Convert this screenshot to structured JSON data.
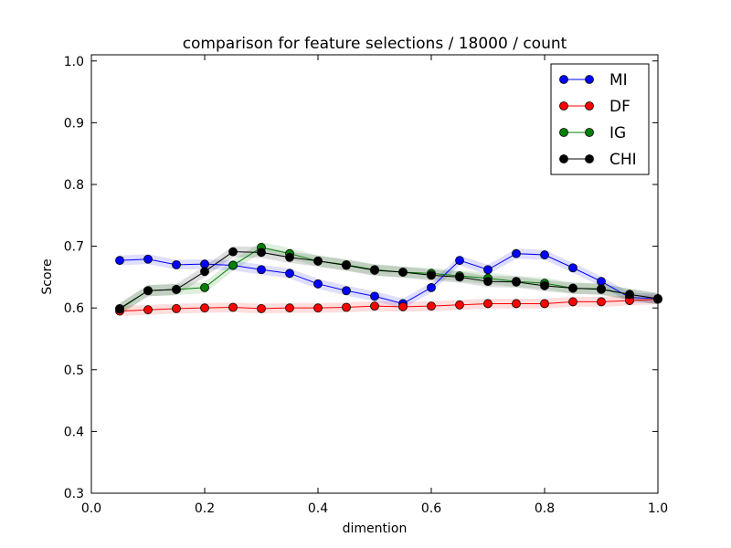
{
  "chart_data": {
    "type": "line",
    "title": "comparison for feature selections / 18000 / count",
    "xlabel": "dimention",
    "ylabel": "Score",
    "xlim": [
      0.0,
      1.0
    ],
    "ylim": [
      0.3,
      1.01
    ],
    "xticks": [
      0.0,
      0.2,
      0.4,
      0.6,
      0.8,
      1.0
    ],
    "xtick_labels": [
      "0.0",
      "0.2",
      "0.4",
      "0.6",
      "0.8",
      "1.0"
    ],
    "yticks": [
      0.3,
      0.4,
      0.5,
      0.6,
      0.7,
      0.8,
      0.9,
      1.0
    ],
    "ytick_labels": [
      "0.3",
      "0.4",
      "0.5",
      "0.6",
      "0.7",
      "0.8",
      "0.9",
      "1.0"
    ],
    "grid": false,
    "legend_position": "top-right",
    "x": [
      0.05,
      0.1,
      0.15,
      0.2,
      0.25,
      0.3,
      0.35,
      0.4,
      0.45,
      0.5,
      0.55,
      0.6,
      0.65,
      0.7,
      0.75,
      0.8,
      0.85,
      0.9,
      0.95,
      1.0
    ],
    "series": [
      {
        "name": "MI",
        "color": "#0000ff",
        "values": [
          0.677,
          0.679,
          0.67,
          0.671,
          0.669,
          0.662,
          0.656,
          0.639,
          0.628,
          0.619,
          0.607,
          0.633,
          0.677,
          0.662,
          0.688,
          0.686,
          0.665,
          0.643,
          0.617,
          0.615
        ],
        "band": 0.008
      },
      {
        "name": "DF",
        "color": "#ff0000",
        "values": [
          0.595,
          0.597,
          0.599,
          0.6,
          0.601,
          0.599,
          0.6,
          0.6,
          0.601,
          0.603,
          0.602,
          0.603,
          0.605,
          0.607,
          0.607,
          0.607,
          0.61,
          0.61,
          0.612,
          0.614
        ],
        "band": 0.008
      },
      {
        "name": "IG",
        "color": "#008000",
        "values": [
          0.598,
          0.628,
          0.63,
          0.633,
          0.669,
          0.698,
          0.688,
          0.676,
          0.67,
          0.662,
          0.658,
          0.656,
          0.652,
          0.648,
          0.643,
          0.64,
          0.632,
          0.631,
          0.622,
          0.615
        ],
        "band": 0.009
      },
      {
        "name": "CHI",
        "color": "#000000",
        "values": [
          0.599,
          0.628,
          0.63,
          0.659,
          0.691,
          0.69,
          0.682,
          0.676,
          0.669,
          0.661,
          0.658,
          0.653,
          0.65,
          0.643,
          0.642,
          0.636,
          0.632,
          0.63,
          0.622,
          0.615
        ],
        "band": 0.009
      }
    ]
  }
}
